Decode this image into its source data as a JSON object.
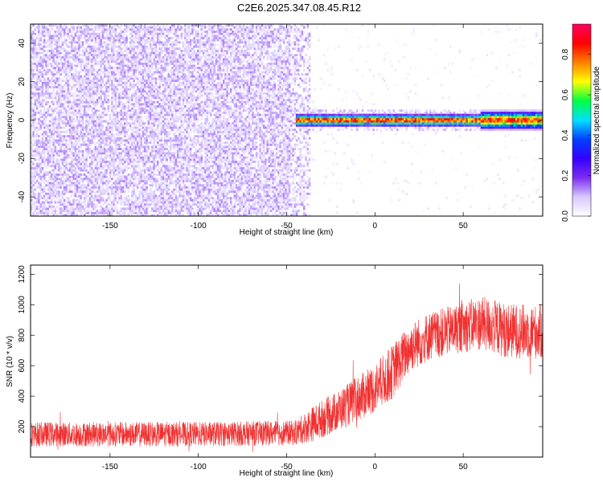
{
  "title": "C2E6.2025.347.08.45.R12",
  "chart_data": [
    {
      "type": "heatmap",
      "description_role": "spectrogram",
      "xlabel": "Height of straight line (km)",
      "ylabel": "Frequency (Hz)",
      "xlim": [
        -195,
        95
      ],
      "ylim": [
        -50,
        50
      ],
      "xticks": [
        -150,
        -100,
        -50,
        0,
        50
      ],
      "yticks": [
        -40,
        -20,
        0,
        20,
        40
      ],
      "colorbar": {
        "label": "Normalized spectral amplitude",
        "range": [
          0.0,
          0.95
        ],
        "ticks": [
          "0.0",
          "0.2",
          "0.4",
          "0.6",
          "0.8"
        ],
        "colormap": [
          "#ffffff",
          "#d8c8ff",
          "#7b2cf0",
          "#3300ff",
          "#0040ff",
          "#00e0ff",
          "#00ff40",
          "#ffff00",
          "#ff8000",
          "#ff0000",
          "#ff0060"
        ]
      },
      "noise_region": {
        "x_from": -195,
        "x_to": -40,
        "level": 0.1
      },
      "signal_track": {
        "x_from": -45,
        "x_to": 95,
        "frequency": 0,
        "peak_level": 0.9
      }
    },
    {
      "type": "line",
      "xlabel": "Height of straight line (km)",
      "ylabel": "SNR (10 * v/v)",
      "xlim": [
        -195,
        95
      ],
      "ylim": [
        0,
        1260
      ],
      "xticks": [
        -150,
        -100,
        -50,
        0,
        50
      ],
      "yticks": [
        200,
        400,
        600,
        800,
        1000,
        1200
      ],
      "color": "#f03030",
      "envelope": [
        {
          "x": -195,
          "mean": 150,
          "spread": 90
        },
        {
          "x": -150,
          "mean": 150,
          "spread": 90
        },
        {
          "x": -100,
          "mean": 150,
          "spread": 90
        },
        {
          "x": -45,
          "mean": 160,
          "spread": 90
        },
        {
          "x": -35,
          "mean": 220,
          "spread": 130
        },
        {
          "x": -20,
          "mean": 310,
          "spread": 150
        },
        {
          "x": 0,
          "mean": 450,
          "spread": 180
        },
        {
          "x": 10,
          "mean": 560,
          "spread": 200
        },
        {
          "x": 20,
          "mean": 720,
          "spread": 180
        },
        {
          "x": 30,
          "mean": 790,
          "spread": 180
        },
        {
          "x": 45,
          "mean": 840,
          "spread": 180
        },
        {
          "x": 60,
          "mean": 880,
          "spread": 200
        },
        {
          "x": 75,
          "mean": 830,
          "spread": 200
        },
        {
          "x": 95,
          "mean": 820,
          "spread": 200
        }
      ]
    }
  ]
}
